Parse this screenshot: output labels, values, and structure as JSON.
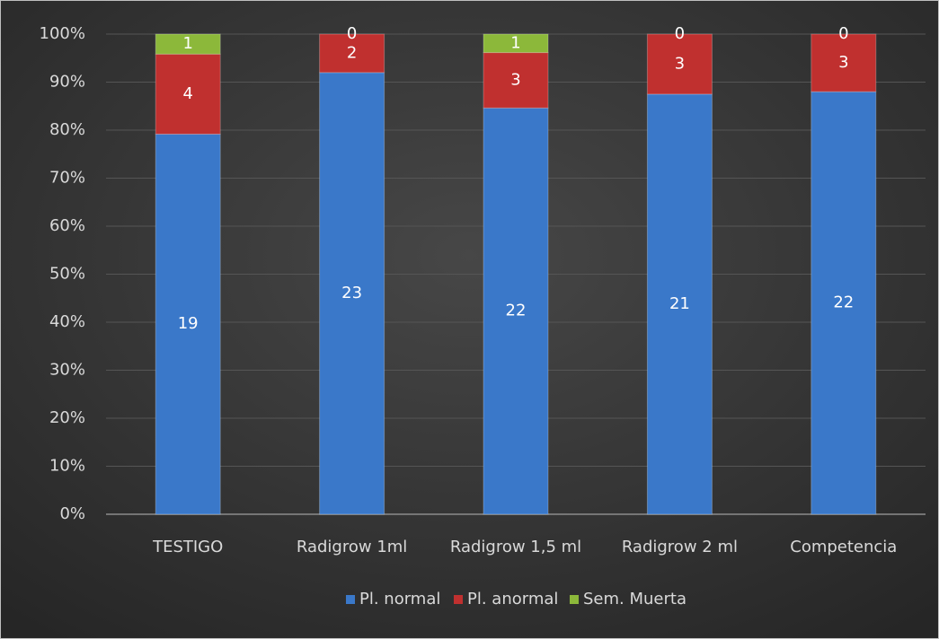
{
  "chart_data": {
    "type": "bar",
    "stack": "percent",
    "categories": [
      "TESTIGO",
      "Radigrow 1ml",
      "Radigrow 1,5 ml",
      "Radigrow 2 ml",
      "Competencia"
    ],
    "series": [
      {
        "name": "Pl. normal",
        "color": "#3a78c9",
        "values": [
          19,
          23,
          22,
          21,
          22
        ]
      },
      {
        "name": "Pl. anormal",
        "color": "#c0302f",
        "values": [
          4,
          2,
          3,
          3,
          3
        ]
      },
      {
        "name": "Sem. Muerta",
        "color": "#8cb83a",
        "values": [
          1,
          0,
          1,
          0,
          0
        ]
      }
    ],
    "ylim": [
      0,
      100
    ],
    "yticks": [
      {
        "value": 0,
        "label": "0%"
      },
      {
        "value": 10,
        "label": "10%"
      },
      {
        "value": 20,
        "label": "20%"
      },
      {
        "value": 30,
        "label": "30%"
      },
      {
        "value": 40,
        "label": "40%"
      },
      {
        "value": 50,
        "label": "50%"
      },
      {
        "value": 60,
        "label": "60%"
      },
      {
        "value": 70,
        "label": "70%"
      },
      {
        "value": 80,
        "label": "80%"
      },
      {
        "value": 90,
        "label": "90%"
      },
      {
        "value": 100,
        "label": "100%"
      }
    ],
    "grid": true,
    "legend": "bottom"
  }
}
